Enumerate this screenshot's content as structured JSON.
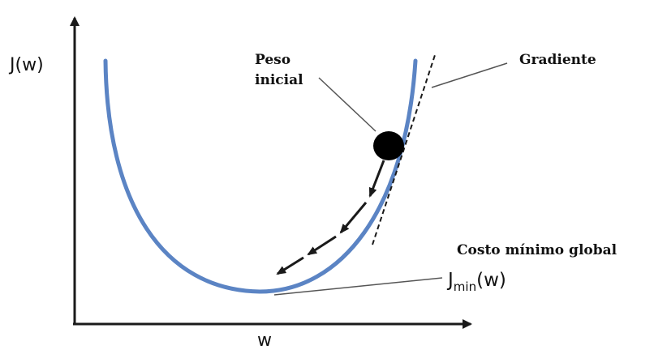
{
  "axes": {
    "y_label": "J(w)",
    "x_label": "w"
  },
  "labels": {
    "peso_line1": "Peso",
    "peso_line2": "inicial",
    "gradiente": "Gradiente",
    "costo": "Costo mínimo global",
    "jmin_main": "J",
    "jmin_sub": "min",
    "jmin_tail": "(w)"
  },
  "colors": {
    "curve": "#5b84c4",
    "axis": "#1a1a1a",
    "ball": "#000000",
    "arrows": "#1a1a1a",
    "leader": "#555555"
  }
}
